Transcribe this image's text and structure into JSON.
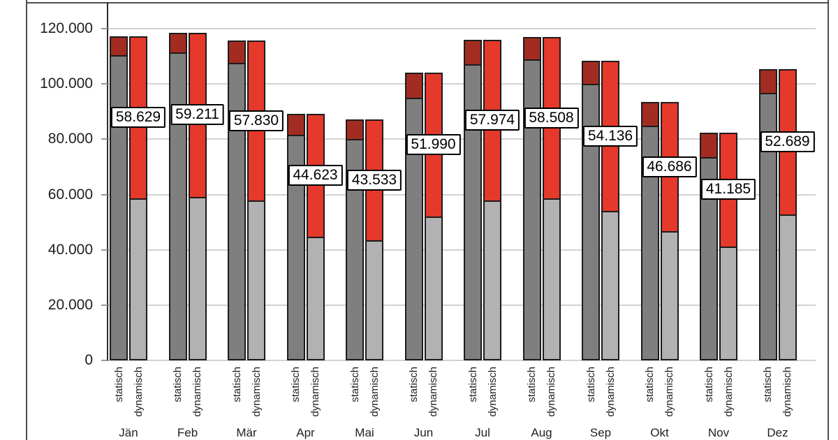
{
  "chart_data": {
    "type": "bar",
    "subtype": "stacked-grouped-columns",
    "title": "",
    "xlabel": "",
    "ylabel": "",
    "legend": "none",
    "grid": true,
    "categories": [
      "Jän",
      "Feb",
      "Mär",
      "Apr",
      "Mai",
      "Jun",
      "Jul",
      "Aug",
      "Sep",
      "Okt",
      "Nov",
      "Dez"
    ],
    "sub_categories": [
      "statisch",
      "dynamisch"
    ],
    "y_axis": {
      "min": 0,
      "max": 120000,
      "step": 20000,
      "ticks": [
        {
          "value": 120000,
          "label": "120.000"
        },
        {
          "value": 100000,
          "label": "100.000"
        },
        {
          "value": 80000,
          "label": "80.000"
        },
        {
          "value": 60000,
          "label": "60.000"
        },
        {
          "value": 40000,
          "label": "40.000"
        },
        {
          "value": 20000,
          "label": "20.000"
        },
        {
          "value": 0,
          "label": "0"
        }
      ]
    },
    "months": [
      {
        "month": "Jän",
        "label": "58.629",
        "statisch": {
          "grau": 110400,
          "rot": 6858
        },
        "dynamisch": {
          "grau": 58629,
          "rot": 58629
        }
      },
      {
        "month": "Feb",
        "label": "59.211",
        "statisch": {
          "grau": 111300,
          "rot": 7122
        },
        "dynamisch": {
          "grau": 59211,
          "rot": 59211
        }
      },
      {
        "month": "Mär",
        "label": "57.830",
        "statisch": {
          "grau": 107600,
          "rot": 8060
        },
        "dynamisch": {
          "grau": 57830,
          "rot": 57830
        }
      },
      {
        "month": "Apr",
        "label": "44.623",
        "statisch": {
          "grau": 81500,
          "rot": 7746
        },
        "dynamisch": {
          "grau": 44623,
          "rot": 44623
        }
      },
      {
        "month": "Mai",
        "label": "43.533",
        "statisch": {
          "grau": 80200,
          "rot": 6866
        },
        "dynamisch": {
          "grau": 43533,
          "rot": 43533
        }
      },
      {
        "month": "Jun",
        "label": "51.990",
        "statisch": {
          "grau": 95000,
          "rot": 8980
        },
        "dynamisch": {
          "grau": 51990,
          "rot": 51990
        }
      },
      {
        "month": "Jul",
        "label": "57.974",
        "statisch": {
          "grau": 107200,
          "rot": 8748
        },
        "dynamisch": {
          "grau": 57974,
          "rot": 57974
        }
      },
      {
        "month": "Aug",
        "label": "58.508",
        "statisch": {
          "grau": 108800,
          "rot": 8216
        },
        "dynamisch": {
          "grau": 58508,
          "rot": 58508
        }
      },
      {
        "month": "Sep",
        "label": "54.136",
        "statisch": {
          "grau": 100100,
          "rot": 8172
        },
        "dynamisch": {
          "grau": 54136,
          "rot": 54136
        }
      },
      {
        "month": "Okt",
        "label": "46.686",
        "statisch": {
          "grau": 85000,
          "rot": 8372
        },
        "dynamisch": {
          "grau": 46686,
          "rot": 46686
        }
      },
      {
        "month": "Nov",
        "label": "41.185",
        "statisch": {
          "grau": 73400,
          "rot": 8970
        },
        "dynamisch": {
          "grau": 41185,
          "rot": 41185
        }
      },
      {
        "month": "Dez",
        "label": "52.689",
        "statisch": {
          "grau": 96800,
          "rot": 8578
        },
        "dynamisch": {
          "grau": 52689,
          "rot": 52689
        }
      }
    ],
    "colors": {
      "statisch_grau": "#7f7f7f",
      "statisch_rot": "#a32c22",
      "dynamisch_grau": "#b2b2b2",
      "dynamisch_rot": "#e5392b",
      "bar_border": "#1c1c1c",
      "gridline": "#d2d2d2",
      "axis": "#2b2b2b",
      "frame": "#4d4d4d",
      "label_box_bg": "#ffffff",
      "label_box_border": "#000000"
    }
  }
}
